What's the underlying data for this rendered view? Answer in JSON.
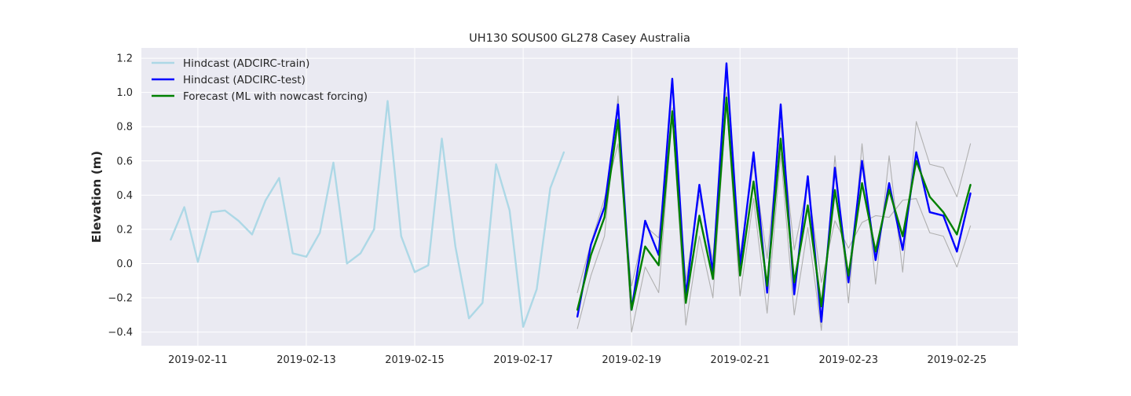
{
  "chart_data": {
    "type": "line",
    "title": "UH130 SOUS00 GL278 Casey Australia",
    "xlabel": "",
    "ylabel": "Elevation (m)",
    "x_axis_type": "date",
    "xlim": [
      "2019-02-09 23:00",
      "2019-02-26 03:00"
    ],
    "ylim": [
      -0.48,
      1.26
    ],
    "x_ticks": [
      "2019-02-11",
      "2019-02-13",
      "2019-02-15",
      "2019-02-17",
      "2019-02-19",
      "2019-02-21",
      "2019-02-23",
      "2019-02-25"
    ],
    "y_ticks": [
      -0.4,
      -0.2,
      0.0,
      0.2,
      0.4,
      0.6,
      0.8,
      1.0,
      1.2
    ],
    "y_tick_labels": [
      "−0.4",
      "−0.2",
      "0.0",
      "0.2",
      "0.4",
      "0.6",
      "0.8",
      "1.0",
      "1.2"
    ],
    "grid": true,
    "legend_position": "top-left",
    "background_color": "#eaeaf2",
    "series": [
      {
        "name": "Hindcast (ADCIRC-train)",
        "color": "#add8e6",
        "x": [
          "2019-02-10 12:00",
          "2019-02-10 18:00",
          "2019-02-11 00:00",
          "2019-02-11 06:00",
          "2019-02-11 12:00",
          "2019-02-11 18:00",
          "2019-02-12 00:00",
          "2019-02-12 06:00",
          "2019-02-12 12:00",
          "2019-02-12 18:00",
          "2019-02-13 00:00",
          "2019-02-13 06:00",
          "2019-02-13 12:00",
          "2019-02-13 18:00",
          "2019-02-14 00:00",
          "2019-02-14 06:00",
          "2019-02-14 12:00",
          "2019-02-14 18:00",
          "2019-02-15 00:00",
          "2019-02-15 06:00",
          "2019-02-15 12:00",
          "2019-02-15 18:00",
          "2019-02-16 00:00",
          "2019-02-16 06:00",
          "2019-02-16 12:00",
          "2019-02-16 18:00",
          "2019-02-17 00:00",
          "2019-02-17 06:00",
          "2019-02-17 12:00",
          "2019-02-17 18:00"
        ],
        "y": [
          0.14,
          0.33,
          0.01,
          0.3,
          0.31,
          0.25,
          0.17,
          0.37,
          0.5,
          0.06,
          0.04,
          0.18,
          0.59,
          0.0,
          0.06,
          0.2,
          0.95,
          0.16,
          -0.05,
          -0.01,
          0.73,
          0.1,
          -0.32,
          -0.23,
          0.58,
          0.31,
          -0.37,
          -0.15,
          0.44,
          0.65
        ]
      },
      {
        "name": "Hindcast (ADCIRC-test)",
        "color": "#0000ff",
        "x": [
          "2019-02-18 00:00",
          "2019-02-18 06:00",
          "2019-02-18 12:00",
          "2019-02-18 18:00",
          "2019-02-19 00:00",
          "2019-02-19 06:00",
          "2019-02-19 12:00",
          "2019-02-19 18:00",
          "2019-02-20 00:00",
          "2019-02-20 06:00",
          "2019-02-20 12:00",
          "2019-02-20 18:00",
          "2019-02-21 00:00",
          "2019-02-21 06:00",
          "2019-02-21 12:00",
          "2019-02-21 18:00",
          "2019-02-22 00:00",
          "2019-02-22 06:00",
          "2019-02-22 12:00",
          "2019-02-22 18:00",
          "2019-02-23 00:00",
          "2019-02-23 06:00",
          "2019-02-23 12:00",
          "2019-02-23 18:00",
          "2019-02-24 00:00",
          "2019-02-24 06:00",
          "2019-02-24 12:00",
          "2019-02-24 18:00",
          "2019-02-25 00:00",
          "2019-02-25 06:00"
        ],
        "y": [
          -0.31,
          0.11,
          0.33,
          0.93,
          -0.27,
          0.25,
          0.05,
          1.08,
          -0.19,
          0.46,
          -0.05,
          1.17,
          -0.01,
          0.65,
          -0.17,
          0.93,
          -0.18,
          0.51,
          -0.34,
          0.56,
          -0.11,
          0.6,
          0.02,
          0.47,
          0.08,
          0.65,
          0.3,
          0.28,
          0.07,
          0.41
        ]
      },
      {
        "name": "Forecast (ML with nowcast forcing)",
        "color": "#008000",
        "x": [
          "2019-02-18 00:00",
          "2019-02-18 06:00",
          "2019-02-18 12:00",
          "2019-02-18 18:00",
          "2019-02-19 00:00",
          "2019-02-19 06:00",
          "2019-02-19 12:00",
          "2019-02-19 18:00",
          "2019-02-20 00:00",
          "2019-02-20 06:00",
          "2019-02-20 12:00",
          "2019-02-20 18:00",
          "2019-02-21 00:00",
          "2019-02-21 06:00",
          "2019-02-21 12:00",
          "2019-02-21 18:00",
          "2019-02-22 00:00",
          "2019-02-22 06:00",
          "2019-02-22 12:00",
          "2019-02-22 18:00",
          "2019-02-23 00:00",
          "2019-02-23 06:00",
          "2019-02-23 12:00",
          "2019-02-23 18:00",
          "2019-02-24 00:00",
          "2019-02-24 06:00",
          "2019-02-24 12:00",
          "2019-02-24 18:00",
          "2019-02-25 00:00",
          "2019-02-25 06:00"
        ],
        "y": [
          -0.27,
          0.05,
          0.27,
          0.84,
          -0.27,
          0.1,
          -0.01,
          0.89,
          -0.23,
          0.28,
          -0.09,
          0.97,
          -0.07,
          0.48,
          -0.13,
          0.73,
          -0.11,
          0.34,
          -0.25,
          0.43,
          -0.07,
          0.47,
          0.07,
          0.43,
          0.16,
          0.6,
          0.39,
          0.3,
          0.17,
          0.46
        ]
      },
      {
        "name": "",
        "color": "#b0b0b0",
        "x": [
          "2019-02-18 00:00",
          "2019-02-18 06:00",
          "2019-02-18 12:00",
          "2019-02-18 18:00",
          "2019-02-19 00:00",
          "2019-02-19 06:00",
          "2019-02-19 12:00",
          "2019-02-19 18:00",
          "2019-02-20 00:00",
          "2019-02-20 06:00",
          "2019-02-20 12:00",
          "2019-02-20 18:00",
          "2019-02-21 00:00",
          "2019-02-21 06:00",
          "2019-02-21 12:00",
          "2019-02-21 18:00",
          "2019-02-22 00:00",
          "2019-02-22 06:00",
          "2019-02-22 12:00",
          "2019-02-22 18:00",
          "2019-02-23 00:00",
          "2019-02-23 06:00",
          "2019-02-23 12:00",
          "2019-02-23 18:00",
          "2019-02-24 00:00",
          "2019-02-24 06:00",
          "2019-02-24 12:00",
          "2019-02-24 18:00",
          "2019-02-25 00:00",
          "2019-02-25 06:00"
        ],
        "y": [
          -0.38,
          -0.07,
          0.16,
          0.98,
          -0.4,
          -0.02,
          -0.17,
          0.87,
          -0.36,
          0.16,
          -0.2,
          0.94,
          -0.19,
          0.38,
          -0.29,
          0.64,
          -0.3,
          0.21,
          -0.39,
          0.63,
          -0.23,
          0.7,
          -0.12,
          0.63,
          -0.05,
          0.83,
          0.58,
          0.56,
          0.39,
          0.7
        ]
      },
      {
        "name": "",
        "color": "#b0b0b0",
        "x": [
          "2019-02-18 00:00",
          "2019-02-18 06:00",
          "2019-02-18 12:00",
          "2019-02-18 18:00",
          "2019-02-19 00:00",
          "2019-02-19 06:00",
          "2019-02-19 12:00",
          "2019-02-19 18:00",
          "2019-02-20 00:00",
          "2019-02-20 06:00",
          "2019-02-20 12:00",
          "2019-02-20 18:00",
          "2019-02-21 00:00",
          "2019-02-21 06:00",
          "2019-02-21 12:00",
          "2019-02-21 18:00",
          "2019-02-22 00:00",
          "2019-02-22 06:00",
          "2019-02-22 12:00",
          "2019-02-22 18:00",
          "2019-02-23 00:00",
          "2019-02-23 06:00",
          "2019-02-23 12:00",
          "2019-02-23 18:00",
          "2019-02-24 00:00",
          "2019-02-24 06:00",
          "2019-02-24 12:00",
          "2019-02-24 18:00",
          "2019-02-25 00:00",
          "2019-02-25 06:00"
        ],
        "y": [
          -0.17,
          0.12,
          0.38,
          0.7,
          -0.13,
          0.22,
          0.15,
          0.91,
          -0.1,
          0.4,
          0.02,
          1.0,
          0.05,
          0.58,
          0.03,
          0.82,
          0.08,
          0.47,
          -0.11,
          0.25,
          0.09,
          0.24,
          0.28,
          0.27,
          0.37,
          0.38,
          0.18,
          0.16,
          -0.02,
          0.22
        ]
      }
    ]
  }
}
